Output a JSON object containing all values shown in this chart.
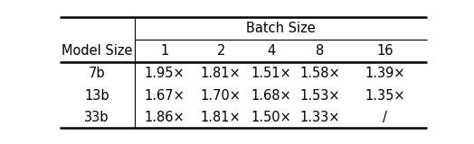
{
  "header_group": "Batch Size",
  "col_header": "Model Size",
  "batch_sizes": [
    "1",
    "2",
    "4",
    "8",
    "16"
  ],
  "rows": [
    {
      "model": "7b",
      "values": [
        "1.95×",
        "1.81×",
        "1.51×",
        "1.58×",
        "1.39×"
      ]
    },
    {
      "model": "13b",
      "values": [
        "1.67×",
        "1.70×",
        "1.68×",
        "1.53×",
        "1.35×"
      ]
    },
    {
      "model": "33b",
      "values": [
        "1.86×",
        "1.81×",
        "1.50×",
        "1.33×",
        "/"
      ]
    }
  ],
  "figsize": [
    5.24,
    1.6
  ],
  "dpi": 100,
  "font_size": 10.5
}
